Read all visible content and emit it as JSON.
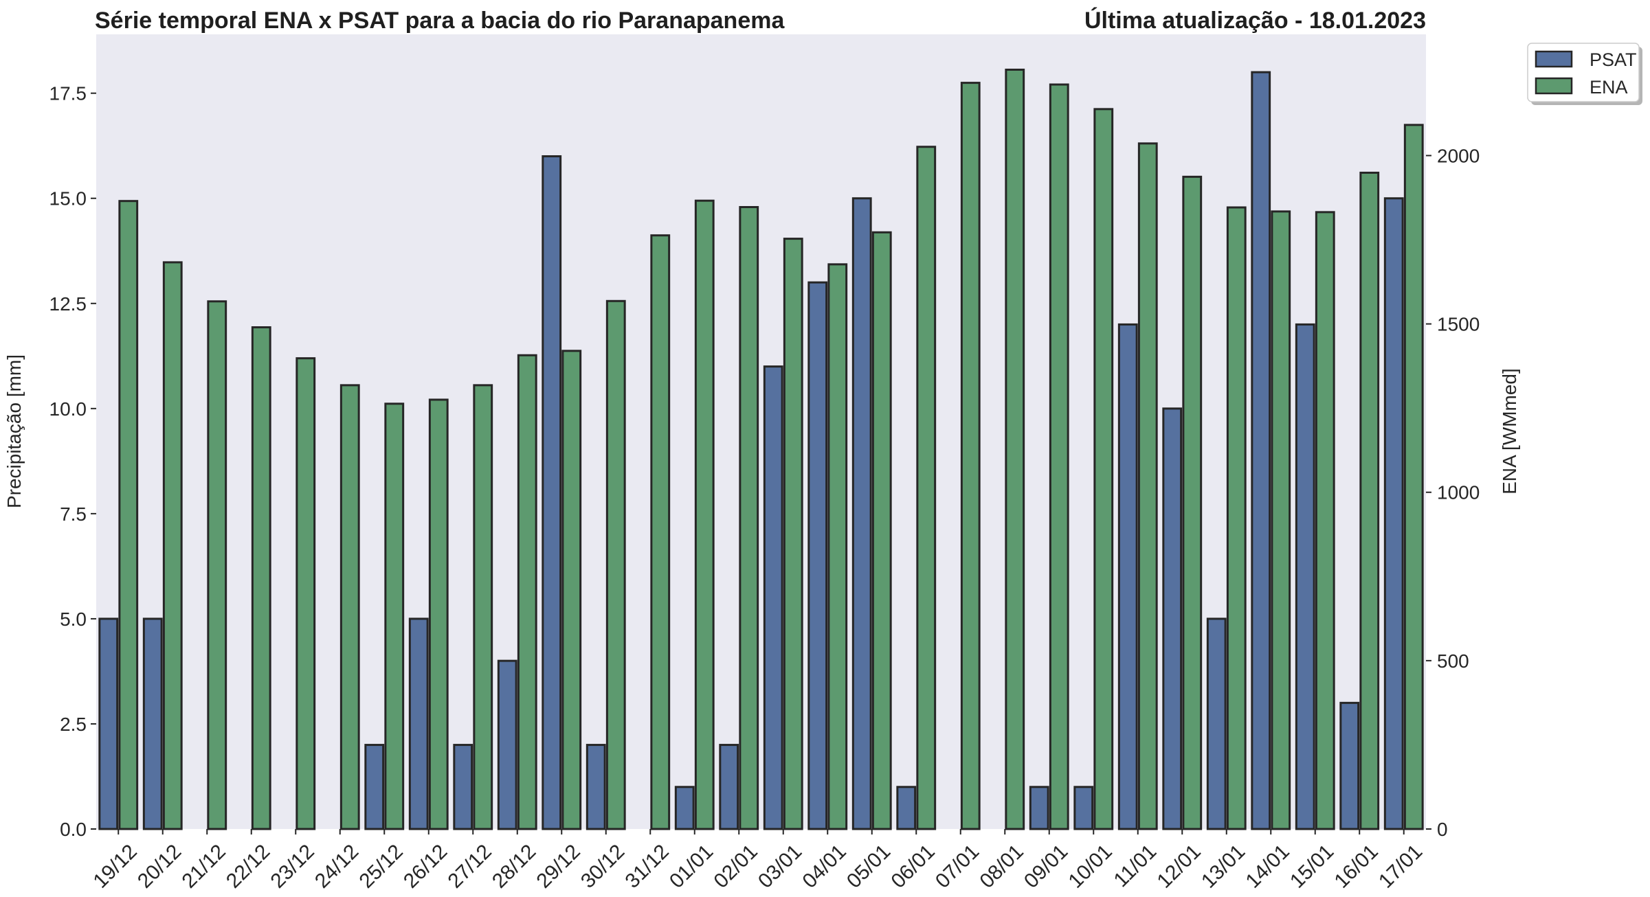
{
  "chart_data": {
    "type": "bar",
    "title": "Série temporal ENA x PSAT para a bacia do rio Paranapanema",
    "subtitle": "Última atualização - 18.01.2023",
    "ylabel": "Precipitação [mm]",
    "y2label": "ENA [WMmed]",
    "ylim": [
      0,
      18.9
    ],
    "y2lim": [
      0,
      2360
    ],
    "yticks": [
      0.0,
      2.5,
      5.0,
      7.5,
      10.0,
      12.5,
      15.0,
      17.5
    ],
    "y2ticks": [
      0,
      500,
      1000,
      1500,
      2000
    ],
    "categories": [
      "19/12",
      "20/12",
      "21/12",
      "22/12",
      "23/12",
      "24/12",
      "25/12",
      "26/12",
      "27/12",
      "28/12",
      "29/12",
      "30/12",
      "31/12",
      "01/01",
      "02/01",
      "03/01",
      "04/01",
      "05/01",
      "06/01",
      "07/01",
      "08/01",
      "09/01",
      "10/01",
      "11/01",
      "12/01",
      "13/01",
      "14/01",
      "15/01",
      "16/01",
      "17/01"
    ],
    "series": [
      {
        "name": "PSAT",
        "axis": "left",
        "color": "#56719f",
        "values": [
          5,
          5,
          0,
          0,
          0,
          0,
          2,
          5,
          2,
          4,
          16,
          2,
          0,
          1,
          2,
          11,
          13,
          15,
          1,
          0,
          0,
          1,
          1,
          12,
          10,
          5,
          18,
          12,
          3,
          15
        ]
      },
      {
        "name": "ENA",
        "axis": "right",
        "color": "#5d9a6f",
        "values": [
          1865,
          1683,
          1567,
          1490,
          1398,
          1318,
          1263,
          1275,
          1318,
          1407,
          1420,
          1568,
          1763,
          1866,
          1847,
          1753,
          1677,
          1772,
          2026,
          2216,
          2255,
          2211,
          2138,
          2036,
          1937,
          1846,
          1834,
          1832,
          1949,
          2091
        ]
      }
    ],
    "legend": "top-right outside",
    "grid": false,
    "background": "#eaeaf2",
    "bar_edge": "#262626"
  }
}
